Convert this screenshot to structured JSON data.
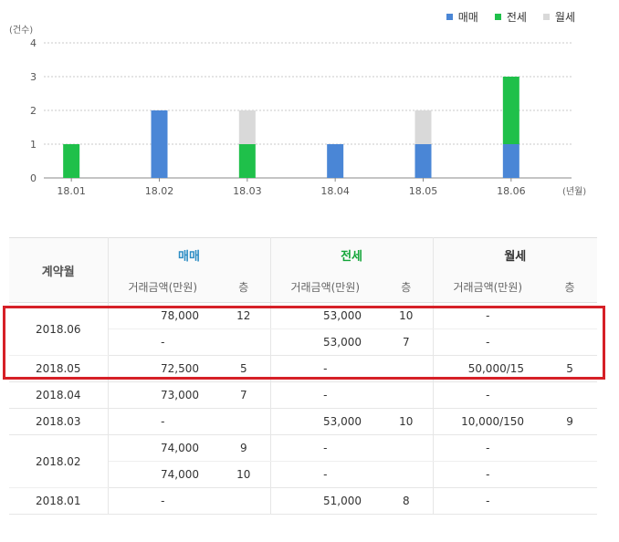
{
  "legend": [
    {
      "label": "매매",
      "color": "#4a86d6"
    },
    {
      "label": "전세",
      "color": "#1fc04a"
    },
    {
      "label": "월세",
      "color": "#d9d9d9"
    }
  ],
  "chart_data": {
    "type": "bar",
    "stacked": true,
    "categories": [
      "18.01",
      "18.02",
      "18.03",
      "18.04",
      "18.05",
      "18.06"
    ],
    "series": [
      {
        "name": "매매",
        "color": "#4a86d6",
        "values": [
          0,
          2,
          0,
          1,
          1,
          1
        ]
      },
      {
        "name": "전세",
        "color": "#1fc04a",
        "values": [
          1,
          0,
          1,
          0,
          0,
          2
        ]
      },
      {
        "name": "월세",
        "color": "#d9d9d9",
        "values": [
          0,
          0,
          1,
          0,
          1,
          0
        ]
      }
    ],
    "ylabel": "(건수)",
    "xlabel": "(년월)",
    "ylim": [
      0,
      4
    ],
    "yticks": [
      "0",
      "1",
      "2",
      "3",
      "4"
    ],
    "grid": true,
    "legend_position": "top-right"
  },
  "table": {
    "month_header": "계약월",
    "groups": [
      {
        "label": "매매",
        "color": "#2b8cc4"
      },
      {
        "label": "전세",
        "color": "#13a538"
      },
      {
        "label": "월세",
        "color": "#333333"
      }
    ],
    "sub_amount": "거래금액(만원)",
    "sub_floor": "층",
    "rows": [
      {
        "month": "2018.06",
        "entries": [
          [
            "78,000",
            "12",
            "53,000",
            "10",
            "-",
            ""
          ],
          [
            "-",
            "",
            "53,000",
            "7",
            "-",
            ""
          ]
        ]
      },
      {
        "month": "2018.05",
        "entries": [
          [
            "72,500",
            "5",
            "-",
            "",
            "50,000/15",
            "5"
          ]
        ]
      },
      {
        "month": "2018.04",
        "entries": [
          [
            "73,000",
            "7",
            "-",
            "",
            "-",
            ""
          ]
        ]
      },
      {
        "month": "2018.03",
        "entries": [
          [
            "-",
            "",
            "53,000",
            "10",
            "10,000/150",
            "9"
          ]
        ]
      },
      {
        "month": "2018.02",
        "entries": [
          [
            "74,000",
            "9",
            "-",
            "",
            "-",
            ""
          ],
          [
            "74,000",
            "10",
            "-",
            "",
            "-",
            ""
          ]
        ]
      },
      {
        "month": "2018.01",
        "entries": [
          [
            "-",
            "",
            "51,000",
            "8",
            "-",
            ""
          ]
        ]
      }
    ]
  }
}
